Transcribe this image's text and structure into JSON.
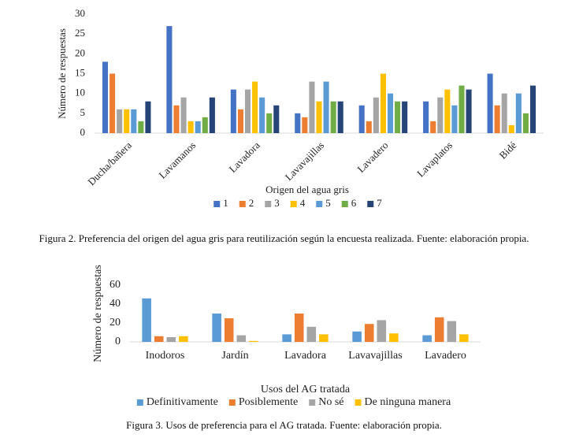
{
  "chart_data": [
    {
      "type": "bar",
      "categories": [
        "Ducha/bañera",
        "Lavamanos",
        "Lavadora",
        "Lavavajillas",
        "Lavadero",
        "Lavaplatos",
        "Bidé"
      ],
      "series": [
        {
          "name": "1",
          "color": "#4472c4",
          "values": [
            18,
            27,
            11,
            5,
            7,
            8,
            15
          ]
        },
        {
          "name": "2",
          "color": "#ed7d31",
          "values": [
            15,
            7,
            6,
            4,
            3,
            3,
            7
          ]
        },
        {
          "name": "3",
          "color": "#a5a5a5",
          "values": [
            6,
            9,
            11,
            13,
            9,
            9,
            10
          ]
        },
        {
          "name": "4",
          "color": "#ffc000",
          "values": [
            6,
            3,
            13,
            8,
            15,
            11,
            2
          ]
        },
        {
          "name": "5",
          "color": "#5b9bd5",
          "values": [
            6,
            3,
            9,
            13,
            10,
            7,
            10
          ]
        },
        {
          "name": "6",
          "color": "#70ad47",
          "values": [
            3,
            4,
            5,
            8,
            8,
            12,
            5
          ]
        },
        {
          "name": "7",
          "color": "#264478",
          "values": [
            8,
            9,
            7,
            8,
            8,
            11,
            12
          ]
        }
      ],
      "ylabel": "Número de respuestas",
      "xlabel": "Origen del agua gris",
      "ylim": [
        0,
        30
      ],
      "yticks": [
        0,
        5,
        10,
        15,
        20,
        25,
        30
      ],
      "grid": false
    },
    {
      "type": "bar",
      "categories": [
        "Inodoros",
        "Jardín",
        "Lavadora",
        "Lavavajillas",
        "Lavadero"
      ],
      "series": [
        {
          "name": "Definitivamente",
          "color": "#5b9bd5",
          "values": [
            46,
            30,
            8,
            11,
            7
          ]
        },
        {
          "name": "Posiblemente",
          "color": "#ed7d31",
          "values": [
            6,
            25,
            30,
            19,
            26
          ]
        },
        {
          "name": "No sé",
          "color": "#a5a5a5",
          "values": [
            5,
            7,
            16,
            23,
            22
          ]
        },
        {
          "name": "De ninguna manera",
          "color": "#ffc000",
          "values": [
            6,
            1,
            8,
            9,
            8
          ]
        }
      ],
      "ylabel": "Número de respuestas",
      "xlabel": "Usos del AG tratada",
      "ylim": [
        0,
        60
      ],
      "yticks": [
        0,
        20,
        40,
        60
      ],
      "grid": false
    }
  ],
  "captions": [
    "Figura 2. Preferencia del origen del agua gris para reutilización según la encuesta realizada. Fuente: elaboración propia.",
    "Figura 3. Usos de preferencia para el AG tratada. Fuente: elaboración propia."
  ]
}
